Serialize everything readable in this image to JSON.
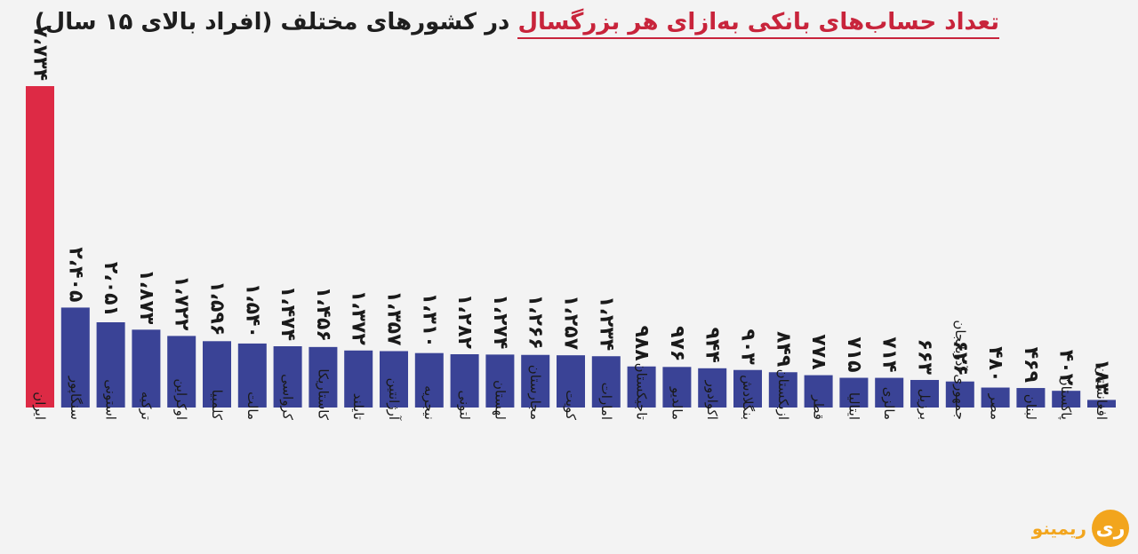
{
  "title": {
    "part_highlight": "تعداد حساب‌های بانکی به‌ازای هر بزرگسال",
    "part_rest": " در کشورهای مختلف (افراد بالای ۱۵ سال)"
  },
  "logo": {
    "text": "ریمینو",
    "mark": "ری"
  },
  "colors": {
    "highlight": "#dd2a45",
    "bars": "#3a4396",
    "title_highlight": "#c8243b",
    "logo": "#f2a51d"
  },
  "chart_data": {
    "type": "bar",
    "title": "تعداد حساب‌های بانکی به‌ازای هر بزرگسال در کشورهای مختلف (افراد بالای ۱۵ سال)",
    "categories": [
      "ایران",
      "سنگاپور",
      "استونی",
      "ترکیه",
      "اوکراین",
      "کلمبیا",
      "مالت",
      "کرواسی",
      "کاستاریکا",
      "تایلند",
      "آرژانتین",
      "نیجریه",
      "لتونی",
      "لهستان",
      "مجارستان",
      "کویت",
      "امارات",
      "تاجیکستان",
      "مالدیو",
      "اکوادور",
      "بنگلادش",
      "ازبکستان",
      "قطر",
      "ایتالیا",
      "مالزی",
      "برزیل",
      "جمهوری آذربایجان",
      "مصر",
      "لبنان",
      "پاکستان",
      "افغانستان"
    ],
    "value_labels": [
      "۷،۷۳۴",
      "۲،۴۰۵",
      "۲،۰۵۱",
      "۱،۸۷۳",
      "۱،۷۲۲",
      "۱،۵۹۶",
      "۱،۵۴۰",
      "۱،۴۷۴",
      "۱،۴۵۶",
      "۱،۳۷۲",
      "۱،۳۵۷",
      "۱،۳۱۰",
      "۱،۲۸۲",
      "۱،۲۷۴",
      "۱،۲۶۶",
      "۱،۲۵۷",
      "۱،۲۳۴",
      "۹۸۸",
      "۹۷۶",
      "۹۴۴",
      "۹۰۳",
      "۸۴۹",
      "۷۷۸",
      "۷۱۵",
      "۷۱۴",
      "۶۶۳",
      "۶۲۶",
      "۴۸۰",
      "۴۶۹",
      "۴۰۲",
      "۱۸۳"
    ],
    "values": [
      7.734,
      2.405,
      2.051,
      1.873,
      1.722,
      1.596,
      1.54,
      1.474,
      1.456,
      1.372,
      1.357,
      1.31,
      1.282,
      1.274,
      1.266,
      1.257,
      1.234,
      0.988,
      0.976,
      0.944,
      0.903,
      0.849,
      0.778,
      0.715,
      0.714,
      0.663,
      0.626,
      0.48,
      0.469,
      0.402,
      0.183
    ],
    "highlight_index": 0,
    "ylim": [
      0,
      7.734
    ],
    "grid": false,
    "legend": "none"
  }
}
